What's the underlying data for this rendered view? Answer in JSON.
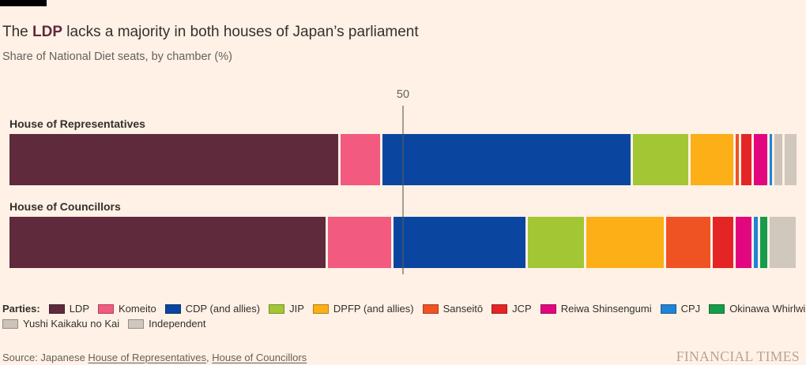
{
  "header": {
    "title_prefix": "The ",
    "title_highlight": "LDP",
    "title_suffix": " lacks a majority in both houses of Japan’s parliament",
    "subtitle": "Share of National Diet seats, by chamber (%)"
  },
  "chart_data": {
    "type": "bar",
    "stacked": true,
    "orientation": "horizontal",
    "unit": "percent of chamber seats",
    "xlim": [
      0,
      100
    ],
    "grid": "single reference line only",
    "reference_line": {
      "value": 50,
      "label": "50"
    },
    "categories": [
      "House of Representatives",
      "House of Councillors"
    ],
    "series": [
      {
        "name": "LDP",
        "color": "#5E2A3C",
        "values": [
          42.1,
          40.5
        ]
      },
      {
        "name": "Komeito",
        "color": "#F25A7F",
        "values": [
          5.3,
          8.3
        ]
      },
      {
        "name": "CDP (and allies)",
        "color": "#0A46A0",
        "values": [
          31.8,
          17.1
        ]
      },
      {
        "name": "JIP",
        "color": "#A3C635",
        "values": [
          7.3,
          7.4
        ]
      },
      {
        "name": "DPFP (and allies)",
        "color": "#FCAF16",
        "values": [
          5.8,
          10.1
        ]
      },
      {
        "name": "Sanseitō",
        "color": "#F05323",
        "values": [
          0.7,
          6.0
        ]
      },
      {
        "name": "JCP",
        "color": "#E32526",
        "values": [
          1.6,
          2.9
        ]
      },
      {
        "name": "Reiwa Shinsengumi",
        "color": "#E2077F",
        "values": [
          2.0,
          2.3
        ]
      },
      {
        "name": "CPJ",
        "color": "#2083D5",
        "values": [
          0.6,
          0.8
        ]
      },
      {
        "name": "Okinawa Whirlwind",
        "color": "#169C4B",
        "values": [
          0,
          1.2
        ]
      },
      {
        "name": "Yushi Kaikaku no Kai",
        "color": "#CDC3B9",
        "values": [
          1.3,
          0
        ]
      },
      {
        "name": "Independent",
        "color": "#D0C7BD",
        "values": [
          1.5,
          3.3
        ]
      }
    ],
    "legend": {
      "label": "Parties:",
      "position": "bottom",
      "rows": [
        [
          "LDP",
          "Komeito",
          "CDP (and allies)",
          "JIP",
          "DPFP (and allies)",
          "Sanseitō",
          "JCP",
          "Reiwa Shinsengumi",
          "CPJ",
          "Okinawa Whirlwind"
        ],
        [
          "Yushi Kaikaku no Kai",
          "Independent"
        ]
      ]
    }
  },
  "footer": {
    "source_prefix": "Source: Japanese ",
    "source_links": [
      "House of Representatives",
      "House of Councillors"
    ],
    "link_separator": ", ",
    "brand": "FINANCIAL TIMES"
  }
}
